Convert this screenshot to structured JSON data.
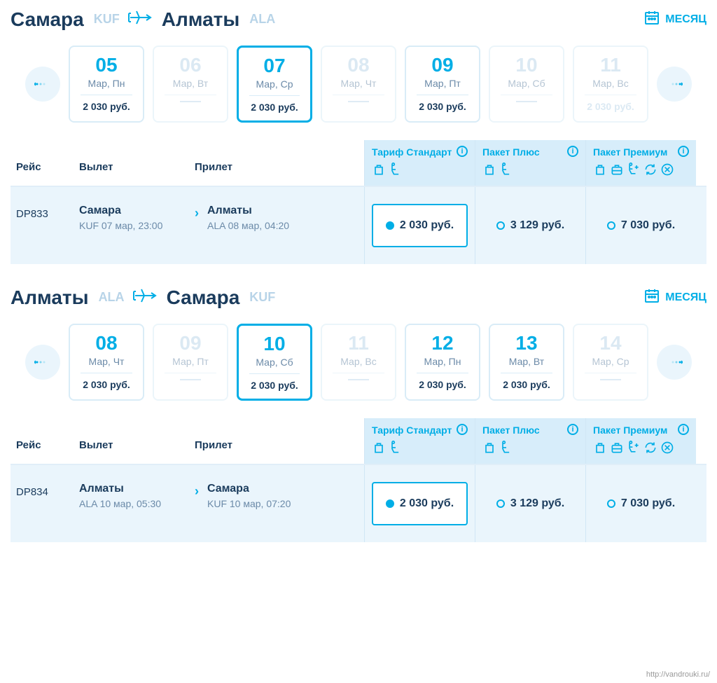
{
  "colors": {
    "primary": "#00aee6",
    "text": "#1a3b5c",
    "muted": "#6b8aa8",
    "light_border": "#d9ecf7",
    "row_bg": "#eaf5fc",
    "fare_head_bg": "#d7edfa"
  },
  "month_button": "МЕСЯЦ",
  "table_headers": {
    "flight": "Рейс",
    "departure": "Вылет",
    "arrival": "Прилет"
  },
  "fares": [
    {
      "name": "Тариф Стандарт",
      "icons": [
        "bag",
        "seat"
      ]
    },
    {
      "name": "Пакет Плюс",
      "icons": [
        "bag",
        "seat"
      ]
    },
    {
      "name": "Пакет Премиум",
      "icons": [
        "bag",
        "case",
        "seat-plus",
        "refresh",
        "cancel"
      ]
    }
  ],
  "segments": [
    {
      "from_city": "Самара",
      "from_code": "KUF",
      "to_city": "Алматы",
      "to_code": "ALA",
      "days": [
        {
          "num": "05",
          "label": "Мар, Пн",
          "price": "2 030 руб.",
          "selected": false,
          "faded": false
        },
        {
          "num": "06",
          "label": "Мар, Вт",
          "price": "",
          "selected": false,
          "faded": true
        },
        {
          "num": "07",
          "label": "Мар, Ср",
          "price": "2 030 руб.",
          "selected": true,
          "faded": false
        },
        {
          "num": "08",
          "label": "Мар, Чт",
          "price": "",
          "selected": false,
          "faded": true
        },
        {
          "num": "09",
          "label": "Мар, Пт",
          "price": "2 030 руб.",
          "selected": false,
          "faded": false
        },
        {
          "num": "10",
          "label": "Мар, Сб",
          "price": "",
          "selected": false,
          "faded": true
        },
        {
          "num": "11",
          "label": "Мар, Вс",
          "price": "2 030 руб.",
          "selected": false,
          "faded": true
        }
      ],
      "flight": {
        "number": "DP833",
        "dep_city": "Самара",
        "dep_detail": "KUF 07 мар, 23:00",
        "arr_city": "Алматы",
        "arr_detail": "ALA 08 мар, 04:20",
        "prices": [
          "2 030 руб.",
          "3 129 руб.",
          "7 030 руб."
        ],
        "selected_fare": 0
      }
    },
    {
      "from_city": "Алматы",
      "from_code": "ALA",
      "to_city": "Самара",
      "to_code": "KUF",
      "days": [
        {
          "num": "08",
          "label": "Мар, Чт",
          "price": "2 030 руб.",
          "selected": false,
          "faded": false
        },
        {
          "num": "09",
          "label": "Мар, Пт",
          "price": "",
          "selected": false,
          "faded": true
        },
        {
          "num": "10",
          "label": "Мар, Сб",
          "price": "2 030 руб.",
          "selected": true,
          "faded": false
        },
        {
          "num": "11",
          "label": "Мар, Вс",
          "price": "",
          "selected": false,
          "faded": true
        },
        {
          "num": "12",
          "label": "Мар, Пн",
          "price": "2 030 руб.",
          "selected": false,
          "faded": false
        },
        {
          "num": "13",
          "label": "Мар, Вт",
          "price": "2 030 руб.",
          "selected": false,
          "faded": false
        },
        {
          "num": "14",
          "label": "Мар, Ср",
          "price": "",
          "selected": false,
          "faded": true
        }
      ],
      "flight": {
        "number": "DP834",
        "dep_city": "Алматы",
        "dep_detail": "ALA 10 мар, 05:30",
        "arr_city": "Самара",
        "arr_detail": "KUF 10 мар, 07:20",
        "prices": [
          "2 030 руб.",
          "3 129 руб.",
          "7 030 руб."
        ],
        "selected_fare": 0
      }
    }
  ],
  "watermark": "http://vandrouki.ru/"
}
